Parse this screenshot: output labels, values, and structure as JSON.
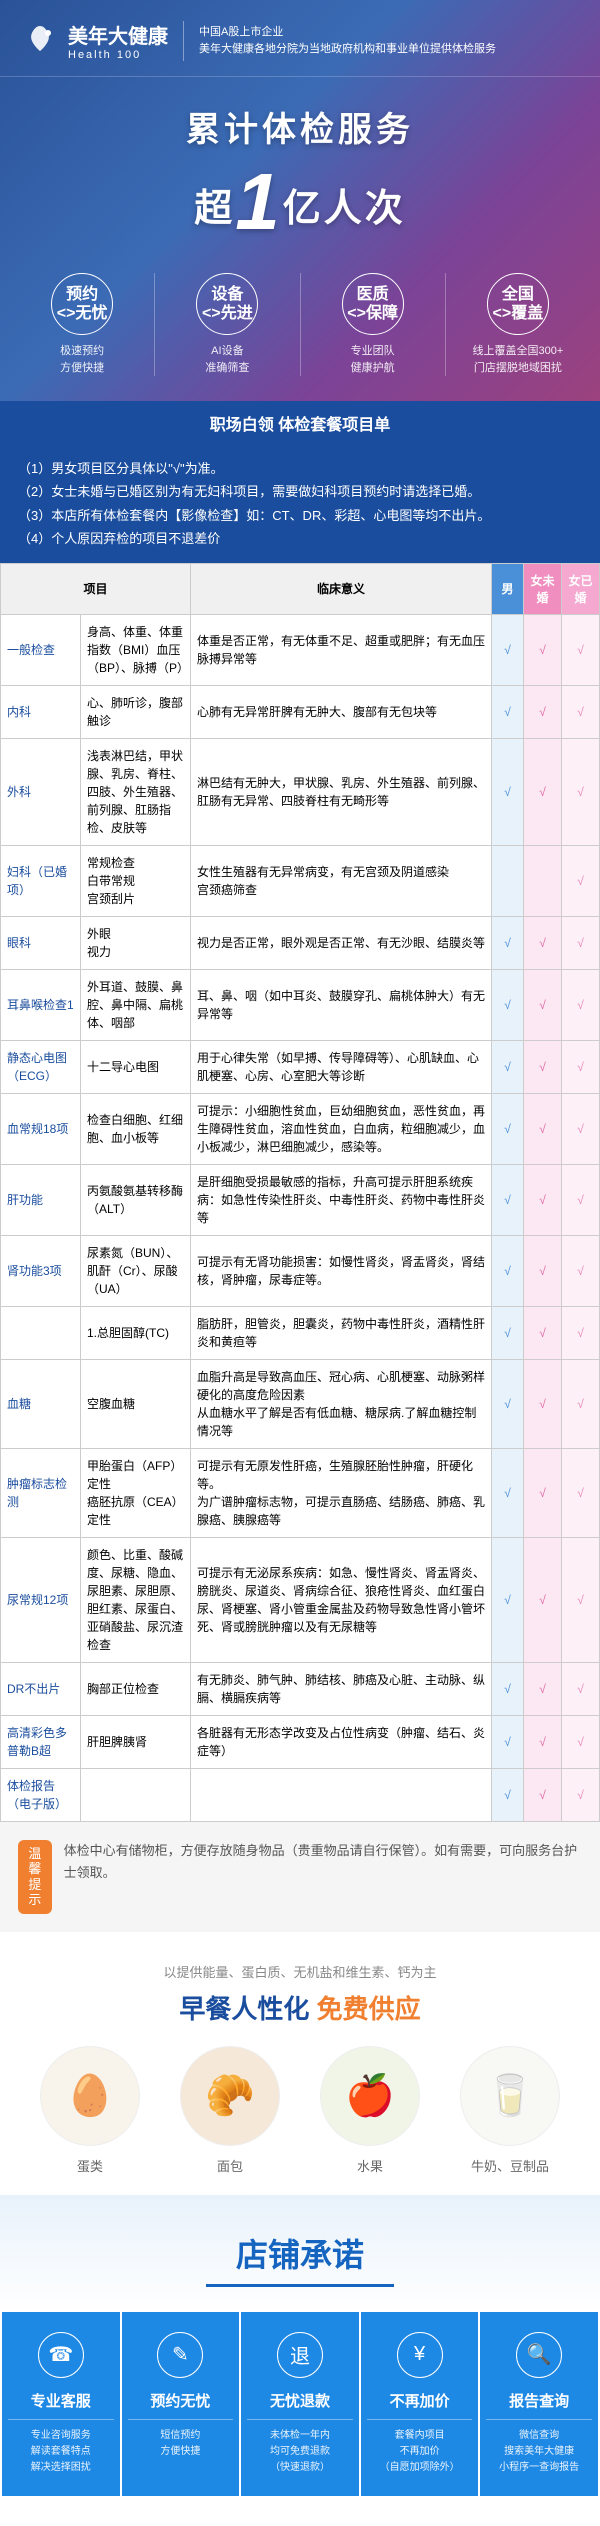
{
  "header": {
    "brand": "美年大健康",
    "brand_en": "Health 100",
    "top_line1": "中国A股上市企业",
    "top_line2": "美年大健康各地分院为当地政府机构和事业单位提供体检服务",
    "hero_title": "累计体检服务",
    "hero_prefix": "超",
    "hero_big": "1",
    "hero_unit": "亿",
    "hero_suffix": "人次",
    "features": [
      {
        "title1": "预约",
        "title2": "无忧",
        "desc1": "极速预约",
        "desc2": "方便快捷"
      },
      {
        "title1": "设备",
        "title2": "先进",
        "desc1": "AI设备",
        "desc2": "准确筛查"
      },
      {
        "title1": "医质",
        "title2": "保障",
        "desc1": "专业团队",
        "desc2": "健康护航"
      },
      {
        "title1": "全国",
        "title2": "覆盖",
        "desc1": "线上覆盖全国300+",
        "desc2": "门店摆脱地域困扰"
      }
    ]
  },
  "package": {
    "title": "职场白领 体检套餐项目单",
    "notes": [
      "（1）男女项目区分具体以\"√\"为准。",
      "（2）女士未婚与已婚区别为有无妇科项目，需要做妇科项目预约时请选择已婚。",
      "（3）本店所有体检套餐内【影像检查】如：CT、DR、彩超、心电图等均不出片。",
      "（4）个人原因弃检的项目不退差价"
    ],
    "cols": {
      "c1": "项目",
      "c2": "临床意义",
      "m": "男",
      "f1": "女未婚",
      "f2": "女已婚"
    },
    "rows": [
      {
        "name": "一般检查",
        "item": "身高、体重、体重指数（BMI）血压（BP）、脉搏（P）",
        "desc": "体重是否正常，有无体重不足、超重或肥胖；有无血压脉搏异常等",
        "m": "√",
        "f1": "√",
        "f2": "√"
      },
      {
        "name": "内科",
        "item": "心、肺听诊，腹部触诊",
        "desc": "心肺有无异常肝脾有无肿大、腹部有无包块等",
        "m": "√",
        "f1": "√",
        "f2": "√"
      },
      {
        "name": "外科",
        "item": "浅表淋巴结，甲状腺、乳房、脊柱、四肢、外生殖器、前列腺、肛肠指检、皮肤等",
        "desc": "淋巴结有无肿大，甲状腺、乳房、外生殖器、前列腺、肛肠有无异常、四肢脊柱有无畸形等",
        "m": "√",
        "f1": "√",
        "f2": "√"
      },
      {
        "name": "妇科（已婚项）",
        "item": "常规检查\n白带常规\n宫颈刮片",
        "desc": "女性生殖器有无异常病变，有无宫颈及阴道感染\n宫颈癌筛查",
        "m": "",
        "f1": "",
        "f2": "√"
      },
      {
        "name": "眼科",
        "item": "外眼\n视力",
        "desc": "视力是否正常，眼外观是否正常、有无沙眼、结膜炎等",
        "m": "√",
        "f1": "√",
        "f2": "√"
      },
      {
        "name": "耳鼻喉检查1",
        "item": "外耳道、鼓膜、鼻腔、鼻中隔、扁桃体、咽部",
        "desc": "耳、鼻、咽（如中耳炎、鼓膜穿孔、扁桃体肿大）有无异常等",
        "m": "√",
        "f1": "√",
        "f2": "√"
      },
      {
        "name": "静态心电图（ECG）",
        "item": "十二导心电图",
        "desc": "用于心律失常（如早搏、传导障碍等）、心肌缺血、心肌梗塞、心房、心室肥大等诊断",
        "m": "√",
        "f1": "√",
        "f2": "√"
      },
      {
        "name": "血常规18项",
        "item": "检查白细胞、红细胞、血小板等",
        "desc": "可提示：小细胞性贫血，巨幼细胞贫血，恶性贫血，再生障碍性贫血，溶血性贫血，白血病，粒细胞减少，血小板减少，淋巴细胞减少，感染等。",
        "m": "√",
        "f1": "√",
        "f2": "√"
      },
      {
        "name": "肝功能",
        "item": "丙氨酸氨基转移酶（ALT）",
        "desc": "是肝细胞受损最敏感的指标，升高可提示肝胆系统疾病：如急性传染性肝炎、中毒性肝炎、药物中毒性肝炎等",
        "m": "√",
        "f1": "√",
        "f2": "√"
      },
      {
        "name": "肾功能3项",
        "item": "尿素氮（BUN）、肌酐（Cr）、尿酸（UA）",
        "desc": "可提示有无肾功能损害：如慢性肾炎，肾盂肾炎，肾结核，肾肿瘤，尿毒症等。",
        "m": "√",
        "f1": "√",
        "f2": "√"
      },
      {
        "name": "",
        "item": "1.总胆固醇(TC)",
        "desc": "脂肪肝，胆管炎，胆囊炎，药物中毒性肝炎，酒精性肝炎和黄疸等",
        "m": "√",
        "f1": "√",
        "f2": "√"
      },
      {
        "name": "血糖",
        "item": "空腹血糖",
        "desc": "血脂升高是导致高血压、冠心病、心肌梗塞、动脉粥样硬化的高度危险因素\n从血糖水平了解是否有低血糖、糖尿病.了解血糖控制情况等",
        "m": "√",
        "f1": "√",
        "f2": "√"
      },
      {
        "name": "肿瘤标志检测",
        "item": "甲胎蛋白（AFP）定性\n癌胚抗原（CEA）定性",
        "desc": "可提示有无原发性肝癌，生殖腺胚胎性肿瘤，肝硬化等。\n为广谱肿瘤标志物，可提示直肠癌、结肠癌、肺癌、乳腺癌、胰腺癌等",
        "m": "√",
        "f1": "√",
        "f2": "√"
      },
      {
        "name": "尿常规12项",
        "item": "颜色、比重、酸碱度、尿糖、隐血、尿胆素、尿胆原、胆红素、尿蛋白、亚硝酸盐、尿沉渣检查",
        "desc": "可提示有无泌尿系疾病：如急、慢性肾炎、肾盂肾炎、膀胱炎、尿道炎、肾病综合征、狼疮性肾炎、血红蛋白尿、肾梗塞、肾小管重金属盐及药物导致急性肾小管坏死、肾或膀胱肿瘤以及有无尿糖等",
        "m": "√",
        "f1": "√",
        "f2": "√"
      },
      {
        "name": "DR不出片",
        "item": "胸部正位检查",
        "desc": "有无肺炎、肺气肿、肺结核、肺癌及心脏、主动脉、纵膈、横膈疾病等",
        "m": "√",
        "f1": "√",
        "f2": "√"
      },
      {
        "name": "高清彩色多普勒B超",
        "item": "肝胆脾胰肾",
        "desc": "各脏器有无形态学改变及占位性病变（肿瘤、结石、炎症等）",
        "m": "√",
        "f1": "√",
        "f2": "√"
      },
      {
        "name": "体检报告（电子版）",
        "item": "",
        "desc": "",
        "m": "√",
        "f1": "√",
        "f2": "√"
      }
    ]
  },
  "tip": {
    "badge": "温馨提示",
    "text": "体检中心有储物柜，方便存放随身物品（贵重物品请自行保管）。如有需要，可向服务台护士领取。"
  },
  "breakfast": {
    "note": "以提供能量、蛋白质、无机盐和维生素、钙为主",
    "title1": "早餐人性化",
    "title2": "免费供应",
    "items": [
      {
        "emoji": "🥚",
        "label": "蛋类",
        "bg": "#f8f4ec"
      },
      {
        "emoji": "🥐",
        "label": "面包",
        "bg": "#f5e8d8"
      },
      {
        "emoji": "🍎",
        "label": "水果",
        "bg": "#f0f5e8"
      },
      {
        "emoji": "🥛",
        "label": "牛奶、豆制品",
        "bg": "#f8f8f5"
      }
    ]
  },
  "promise": {
    "title": "店铺承诺",
    "items": [
      {
        "icon": "☎",
        "name": "专业客服",
        "desc": "专业咨询服务\n解读套餐特点\n解决选择困扰"
      },
      {
        "icon": "✎",
        "name": "预约无忧",
        "desc": "短信预约\n方便快捷"
      },
      {
        "icon": "退",
        "name": "无忧退款",
        "desc": "未体检一年内\n均可免费退款\n（快速退款）"
      },
      {
        "icon": "¥",
        "name": "不再加价",
        "desc": "套餐内项目\n不再加价\n（自愿加项除外）"
      },
      {
        "icon": "🔍",
        "name": "报告查询",
        "desc": "微信查询\n搜索美年大健康\n小程序一查询报告"
      }
    ]
  }
}
